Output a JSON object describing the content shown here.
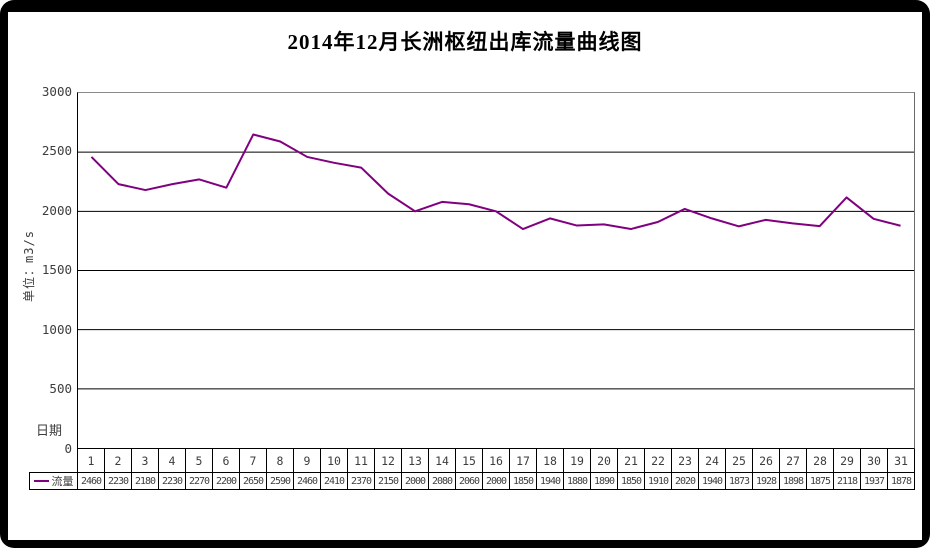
{
  "title": "2014年12月长洲枢纽出库流量曲线图",
  "y_axis": {
    "unit_label": "单位：m3/s",
    "ticks": [
      "3000",
      "2500",
      "2000",
      "1500",
      "1000",
      "500",
      "0"
    ]
  },
  "x_axis": {
    "label": "日期"
  },
  "legend": {
    "series_label": "流量"
  },
  "colors": {
    "line": "#800080",
    "grid": "#000000",
    "text": "#3d3d3d"
  },
  "chart_data": {
    "type": "line",
    "title": "2014年12月长洲枢纽出库流量曲线图",
    "xlabel": "日期",
    "ylabel": "单位：m3/s",
    "categories": [
      1,
      2,
      3,
      4,
      5,
      6,
      7,
      8,
      9,
      10,
      11,
      12,
      13,
      14,
      15,
      16,
      17,
      18,
      19,
      20,
      21,
      22,
      23,
      24,
      25,
      26,
      27,
      28,
      29,
      30,
      31
    ],
    "series": [
      {
        "name": "流量",
        "values": [
          2460,
          2230,
          2180,
          2230,
          2270,
          2200,
          2650,
          2590,
          2460,
          2410,
          2370,
          2150,
          2000,
          2080,
          2060,
          2000,
          1850,
          1940,
          1880,
          1890,
          1850,
          1910,
          2020,
          1940,
          1873,
          1928,
          1898,
          1875,
          2118,
          1937,
          1878
        ]
      }
    ],
    "ylim": [
      0,
      3000
    ],
    "y_tick_step": 500,
    "grid": true,
    "legend_position": "bottom-left-of-data-table",
    "data_table_shown": true
  }
}
